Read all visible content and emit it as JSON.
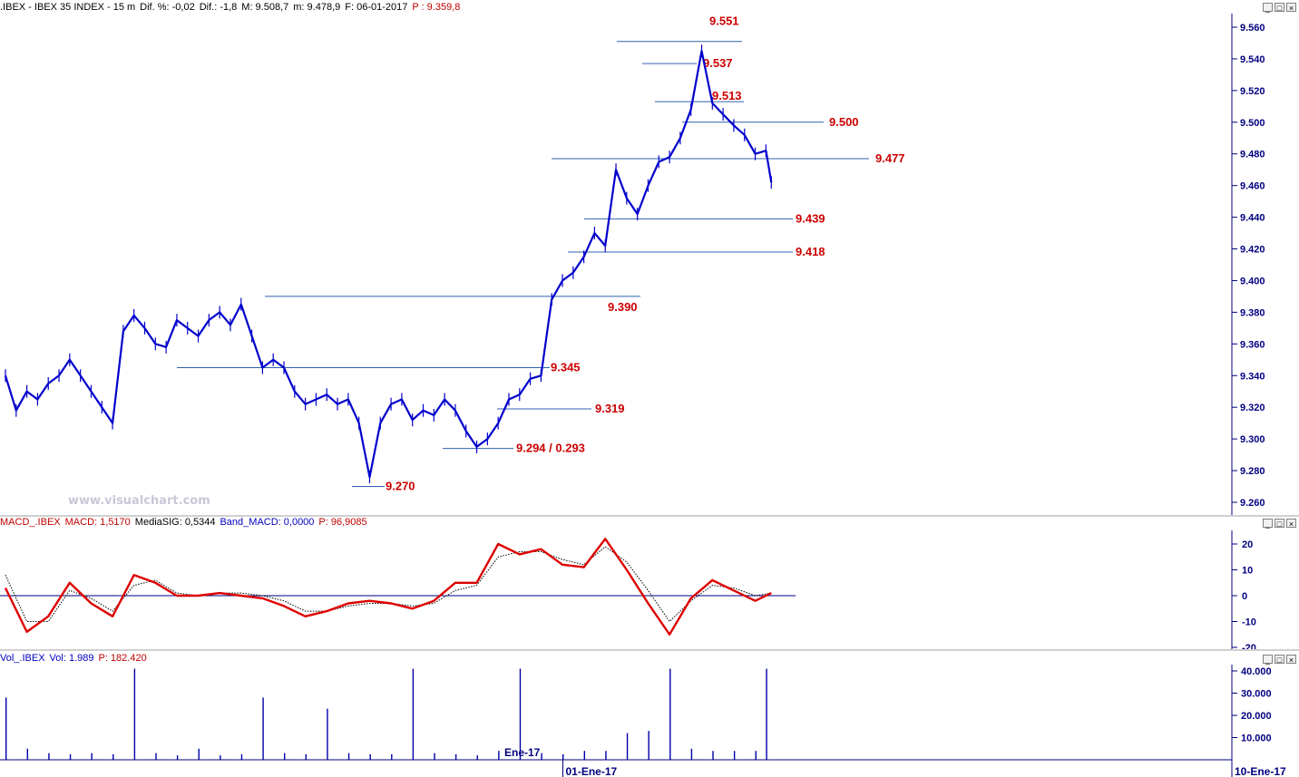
{
  "price_panel": {
    "header": {
      "symbol": ".IBEX - IBEX 35 INDEX - 15 m",
      "dif_pct": "Dif. %: -0,02",
      "dif": "Dif.: -1,8",
      "max": "M: 9.508,7",
      "min": "m: 9.478,9",
      "date": "F: 06-01-2017",
      "pointer": "P : 9.359,8"
    }
  },
  "macd_panel": {
    "header": {
      "name": "MACD_.IBEX",
      "macd": "MACD: 1,5170",
      "signal": "MediaSIG: 0,5344",
      "band": "Band_MACD: 0,0000",
      "pointer": "P: 96,9085"
    }
  },
  "vol_panel": {
    "header": {
      "name": "Vol_.IBEX",
      "vol": "Vol: 1.989",
      "pointer": "P: 182.420"
    }
  },
  "watermark": "www.visualchart.com",
  "colors": {
    "price": "#0000cc",
    "level_text": "#cc0000",
    "level_line": "#3060b0",
    "macd": "#dd0000",
    "signal": "#000000",
    "zero": "#000080",
    "volume": "#0000aa",
    "axis": "#000080"
  },
  "chart_data": [
    {
      "type": "line",
      "subtype": "candlestick-intraday",
      "title": "IBEX 35 INDEX 15 m",
      "ylim": [
        9250,
        9570
      ],
      "y_ticks": [
        "9.560",
        "9.540",
        "9.520",
        "9.500",
        "9.480",
        "9.460",
        "9.440",
        "9.420",
        "9.400",
        "9.380",
        "9.360",
        "9.340",
        "9.320",
        "9.300",
        "9.280",
        "9.260"
      ],
      "y_tick_values": [
        9560,
        9540,
        9520,
        9500,
        9480,
        9460,
        9440,
        9420,
        9400,
        9380,
        9360,
        9340,
        9320,
        9300,
        9280,
        9260
      ],
      "x_tick_labels": [
        "01-Ene-17",
        "10-Ene-17"
      ],
      "x_tick_positions": [
        0.4545,
        1.0
      ],
      "x_secondary_label": "Ene-17",
      "xlim": [
        0,
        1.145
      ],
      "x": [
        0.0,
        0.01,
        0.02,
        0.03,
        0.04,
        0.05,
        0.06,
        0.07,
        0.08,
        0.09,
        0.1,
        0.11,
        0.12,
        0.13,
        0.14,
        0.15,
        0.16,
        0.17,
        0.18,
        0.19,
        0.2,
        0.21,
        0.22,
        0.23,
        0.24,
        0.25,
        0.26,
        0.27,
        0.28,
        0.29,
        0.3,
        0.31,
        0.32,
        0.33,
        0.34,
        0.35,
        0.36,
        0.37,
        0.38,
        0.39,
        0.4,
        0.41,
        0.42,
        0.43,
        0.44,
        0.45,
        0.46,
        0.47,
        0.48,
        0.49,
        0.5,
        0.51,
        0.52,
        0.53,
        0.54,
        0.55,
        0.56,
        0.57,
        0.58,
        0.59,
        0.6,
        0.61,
        0.62,
        0.63,
        0.64,
        0.65,
        0.66,
        0.67,
        0.68,
        0.69,
        0.7,
        0.71,
        0.715
      ],
      "series": [
        {
          "values": [
            9340,
            9318,
            9330,
            9325,
            9335,
            9340,
            9350,
            9340,
            9330,
            9320,
            9310,
            9368,
            9378,
            9370,
            9360,
            9358,
            9375,
            9370,
            9365,
            9375,
            9380,
            9372,
            9385,
            9365,
            9345,
            9350,
            9345,
            9330,
            9322,
            9325,
            9328,
            9322,
            9325,
            9310,
            9276,
            9310,
            9322,
            9325,
            9312,
            9318,
            9315,
            9325,
            9318,
            9305,
            9295,
            9300,
            9310,
            9325,
            9328,
            9338,
            9340,
            9388,
            9400,
            9405,
            9415,
            9430,
            9422,
            9470,
            9452,
            9442,
            9460,
            9475,
            9478,
            9490,
            9508,
            9545,
            9512,
            9505,
            9498,
            9492,
            9480,
            9482,
            9462
          ]
        }
      ],
      "levels": [
        {
          "label": "9.551",
          "value": 9551
        },
        {
          "label": "9.537",
          "value": 9537
        },
        {
          "label": "9.513",
          "value": 9513
        },
        {
          "label": "9.500",
          "value": 9500
        },
        {
          "label": "9.477",
          "value": 9477
        },
        {
          "label": "9.439",
          "value": 9439
        },
        {
          "label": "9.418",
          "value": 9418
        },
        {
          "label": "9.390",
          "value": 9390
        },
        {
          "label": "9.345",
          "value": 9345
        },
        {
          "label": "9.319",
          "value": 9319
        },
        {
          "label": "9.294 / 0.293",
          "value": 9294
        },
        {
          "label": "9.270",
          "value": 9270
        }
      ]
    },
    {
      "type": "line",
      "title": "MACD_.IBEX",
      "ylim": [
        -22,
        23
      ],
      "y_ticks": [
        "20",
        "10",
        "0",
        "-10",
        "-20"
      ],
      "y_tick_values": [
        20,
        10,
        0,
        -10,
        -20
      ],
      "x": [
        0.0,
        0.02,
        0.04,
        0.06,
        0.08,
        0.1,
        0.12,
        0.14,
        0.16,
        0.18,
        0.2,
        0.22,
        0.24,
        0.26,
        0.28,
        0.3,
        0.32,
        0.34,
        0.36,
        0.38,
        0.4,
        0.42,
        0.44,
        0.46,
        0.48,
        0.5,
        0.52,
        0.54,
        0.56,
        0.58,
        0.6,
        0.62,
        0.64,
        0.66,
        0.68,
        0.7,
        0.715
      ],
      "series": [
        {
          "name": "MACD",
          "values": [
            3,
            -14,
            -8,
            5,
            -3,
            -8,
            8,
            5,
            0,
            0,
            1,
            0,
            -1,
            -4,
            -8,
            -6,
            -3,
            -2,
            -3,
            -5,
            -2,
            5,
            5,
            20,
            16,
            18,
            12,
            11,
            22,
            10,
            -3,
            -15,
            -1,
            6,
            2,
            -2,
            1
          ]
        },
        {
          "name": "MediaSIG",
          "values": [
            8,
            -10,
            -10,
            2,
            -1,
            -6,
            4,
            6,
            1,
            0,
            1,
            1,
            0,
            -2,
            -6,
            -6,
            -4,
            -3,
            -3,
            -4,
            -3,
            2,
            4,
            15,
            17,
            17,
            14,
            12,
            19,
            13,
            2,
            -10,
            -2,
            4,
            3,
            0,
            1
          ]
        }
      ]
    },
    {
      "type": "bar",
      "title": "Vol_.IBEX",
      "ylim": [
        0,
        42000
      ],
      "y_ticks": [
        "40.000",
        "30.000",
        "20.000",
        "10.000"
      ],
      "y_tick_values": [
        40000,
        30000,
        20000,
        10000
      ],
      "x": [
        0.0,
        0.02,
        0.04,
        0.06,
        0.08,
        0.1,
        0.12,
        0.14,
        0.16,
        0.18,
        0.2,
        0.22,
        0.24,
        0.26,
        0.28,
        0.3,
        0.32,
        0.34,
        0.36,
        0.38,
        0.4,
        0.42,
        0.44,
        0.46,
        0.48,
        0.5,
        0.52,
        0.54,
        0.56,
        0.58,
        0.6,
        0.62,
        0.64,
        0.66,
        0.68,
        0.7,
        0.71
      ],
      "series": [
        {
          "name": "Vol",
          "values": [
            28000,
            5000,
            3000,
            2500,
            3000,
            2500,
            41000,
            3000,
            2000,
            5000,
            2000,
            2500,
            28000,
            3000,
            2500,
            23000,
            3000,
            2500,
            2500,
            41000,
            3000,
            2500,
            2000,
            4000,
            41000,
            3000,
            2500,
            4000,
            4000,
            12000,
            13000,
            41000,
            5000,
            4000,
            4000,
            4000,
            41000
          ]
        }
      ]
    }
  ]
}
